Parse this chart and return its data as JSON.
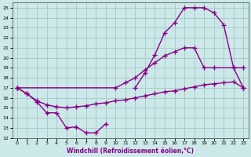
{
  "bg_color": "#cce8e8",
  "grid_color": "#aacccc",
  "line_color": "#880088",
  "xlabel": "Windchill (Refroidissement éolien,°C)",
  "xlim": [
    -0.5,
    23.5
  ],
  "ylim": [
    12,
    25.5
  ],
  "xticks": [
    0,
    1,
    2,
    3,
    4,
    5,
    6,
    7,
    8,
    9,
    10,
    11,
    12,
    13,
    14,
    15,
    16,
    17,
    18,
    19,
    20,
    21,
    22,
    23
  ],
  "yticks": [
    12,
    13,
    14,
    15,
    16,
    17,
    18,
    19,
    20,
    21,
    22,
    23,
    24,
    25
  ],
  "line1_x": [
    0,
    1,
    2,
    3,
    4,
    5,
    6,
    7,
    8,
    9
  ],
  "line1_y": [
    17.0,
    16.4,
    15.6,
    14.5,
    14.5,
    13.0,
    13.1,
    12.5,
    12.5,
    13.4
  ],
  "line2_x": [
    0,
    1,
    2,
    3,
    4,
    5,
    6,
    7,
    8,
    9,
    10,
    11,
    12,
    13,
    14,
    15,
    16,
    17,
    18,
    19,
    20,
    21,
    22,
    23
  ],
  "line2_y": [
    17.0,
    16.4,
    15.7,
    15.3,
    15.1,
    15.0,
    15.1,
    15.2,
    15.4,
    15.5,
    15.7,
    15.8,
    16.0,
    16.2,
    16.4,
    16.6,
    16.7,
    16.9,
    17.1,
    17.3,
    17.4,
    17.5,
    17.6,
    17.0
  ],
  "line3_x": [
    0,
    10,
    11,
    12,
    13,
    14,
    15,
    16,
    17,
    18,
    19,
    20,
    22,
    23
  ],
  "line3_y": [
    17.0,
    17.0,
    17.5,
    18.0,
    18.8,
    19.5,
    20.2,
    20.6,
    21.0,
    21.0,
    19.0,
    19.0,
    19.0,
    17.0
  ],
  "line4_x": [
    12,
    13,
    14,
    15,
    16,
    17,
    18,
    19,
    20,
    21,
    22,
    23
  ],
  "line4_y": [
    17.0,
    18.5,
    20.3,
    22.5,
    23.5,
    25.0,
    25.0,
    25.0,
    24.5,
    23.3,
    19.0,
    19.0
  ]
}
